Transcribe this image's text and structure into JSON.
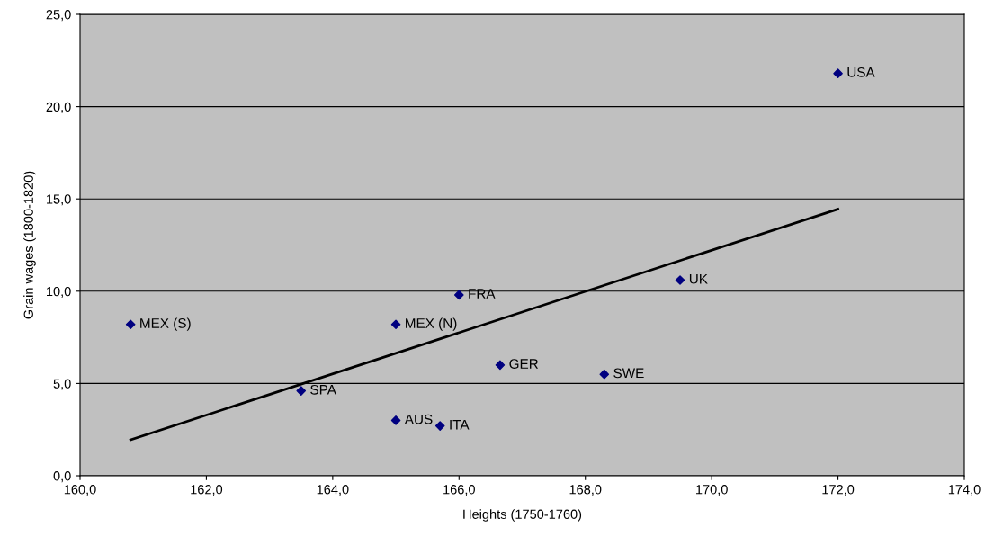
{
  "chart_data": {
    "type": "scatter",
    "xlabel": "Heights (1750-1760)",
    "ylabel": "Grain wages (1800-1820)",
    "series": [
      {
        "color": "#000080",
        "marker": "diamond",
        "x": [
          160.8,
          163.5,
          165.0,
          165.7,
          165.0,
          166.0,
          166.65,
          168.3,
          169.5,
          172.0
        ],
        "values": [
          8.2,
          4.6,
          3.0,
          2.7,
          8.2,
          9.8,
          6.0,
          5.5,
          10.6,
          21.8
        ]
      },
      {
        "type": "line",
        "color": "#000000",
        "marker": "none",
        "x": [
          160.8,
          172.0
        ],
        "values": [
          1.95,
          14.45
        ]
      }
    ],
    "annotations": [
      {
        "text": "MEX (S)",
        "x": 160.8,
        "y": 8.2
      },
      {
        "text": "SPA",
        "x": 163.5,
        "y": 4.6
      },
      {
        "text": "AUS",
        "x": 165.0,
        "y": 3.0
      },
      {
        "text": "ITA",
        "x": 165.7,
        "y": 2.7
      },
      {
        "text": "MEX (N)",
        "x": 165.0,
        "y": 8.2
      },
      {
        "text": "FRA",
        "x": 166.0,
        "y": 9.8
      },
      {
        "text": "GER",
        "x": 166.65,
        "y": 6.0
      },
      {
        "text": "SWE",
        "x": 168.3,
        "y": 5.5
      },
      {
        "text": "UK",
        "x": 169.5,
        "y": 10.6
      },
      {
        "text": "USA",
        "x": 172.0,
        "y": 21.8
      }
    ],
    "xlim": [
      160,
      174
    ],
    "ylim": [
      0,
      25
    ],
    "xticks": [
      {
        "value": 160,
        "label": "160,0"
      },
      {
        "value": 162,
        "label": "162,0"
      },
      {
        "value": 164,
        "label": "164,0"
      },
      {
        "value": 166,
        "label": "166,0"
      },
      {
        "value": 168,
        "label": "168,0"
      },
      {
        "value": 170,
        "label": "170,0"
      },
      {
        "value": 172,
        "label": "172,0"
      },
      {
        "value": 174,
        "label": "174,0"
      }
    ],
    "yticks": [
      {
        "value": 0,
        "label": "0,0"
      },
      {
        "value": 5,
        "label": "5,0"
      },
      {
        "value": 10,
        "label": "10,0"
      },
      {
        "value": 15,
        "label": "15,0"
      },
      {
        "value": 20,
        "label": "20,0"
      },
      {
        "value": 25,
        "label": "25,0"
      }
    ],
    "grid": "y",
    "legend": false
  }
}
